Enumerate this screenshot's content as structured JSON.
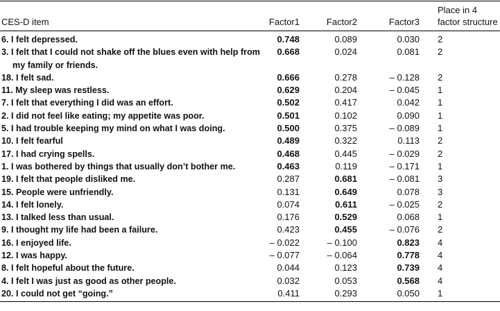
{
  "table": {
    "header": [
      "CES-D item",
      "Factor1",
      "Factor2",
      "Factor3",
      [
        "Place in 4",
        "factor structure"
      ]
    ],
    "rows": [
      {
        "item": "6. I felt depressed.",
        "values": [
          "0.748",
          "0.089",
          "0.030",
          "2"
        ],
        "bold": 0
      },
      {
        "item": "3. I felt that I could not shake off the blues  even with help from my family or friends.",
        "values": [
          "0.668",
          "0.024",
          "0.081",
          "2"
        ],
        "bold": 0
      },
      {
        "item": "18. I felt sad.",
        "values": [
          "0.666",
          "0.278",
          "– 0.128",
          "2"
        ],
        "bold": 0
      },
      {
        "item": "11. My sleep was restless.",
        "values": [
          "0.629",
          "0.204",
          "– 0.045",
          "1"
        ],
        "bold": 0
      },
      {
        "item": "7. I felt that everything I did was an effort.",
        "values": [
          "0.502",
          "0.417",
          "0.042",
          "1"
        ],
        "bold": 0
      },
      {
        "item": "2. I did not feel like eating; my appetite was  poor.",
        "values": [
          "0.501",
          "0.102",
          "0.090",
          "1"
        ],
        "bold": 0
      },
      {
        "item": "5. I had trouble keeping my mind on what I  was doing.",
        "values": [
          "0.500",
          "0.375",
          "– 0.089",
          "1"
        ],
        "bold": 0
      },
      {
        "item": "10. I felt fearful",
        "values": [
          "0.489",
          "0.322",
          "0.113",
          "2"
        ],
        "bold": 0
      },
      {
        "item": "17. I had crying spells.",
        "values": [
          "0.468",
          "0.445",
          "– 0.029",
          "2"
        ],
        "bold": 0
      },
      {
        "item": "1. I was bothered by things that usually don’t bother me.",
        "values": [
          "0.463",
          "0.119",
          "– 0.171",
          "1"
        ],
        "bold": 0
      },
      {
        "item": "19. I felt that people disliked me.",
        "values": [
          "0.287",
          "0.681",
          "– 0.081",
          "3"
        ],
        "bold": 1
      },
      {
        "item": "15. People were unfriendly.",
        "values": [
          "0.131",
          "0.649",
          "0.078",
          "3"
        ],
        "bold": 1
      },
      {
        "item": "14. I felt lonely.",
        "values": [
          "0.074",
          "0.611",
          "– 0.025",
          "2"
        ],
        "bold": 1
      },
      {
        "item": "13. I talked less than usual.",
        "values": [
          "0.176",
          "0.529",
          "0.068",
          "1"
        ],
        "bold": 1
      },
      {
        "item": "9. I thought my life had been a failure.",
        "values": [
          "0.423",
          "0.455",
          "– 0.076",
          "2"
        ],
        "bold": 1
      },
      {
        "item": "16. I enjoyed life.",
        "values": [
          "– 0.022",
          "– 0.100",
          "0.823",
          "4"
        ],
        "bold": 2
      },
      {
        "item": "12. I was happy.",
        "values": [
          "– 0.077",
          "– 0.064",
          "0.778",
          "4"
        ],
        "bold": 2
      },
      {
        "item": "8. I felt hopeful about the future.",
        "values": [
          "0.044",
          "0.123",
          "0.739",
          "4"
        ],
        "bold": 2
      },
      {
        "item": "4. I felt I was just as good as other people.",
        "values": [
          "0.032",
          "0.053",
          "0.568",
          "4"
        ],
        "bold": 2
      },
      {
        "item": "20. I could not get “going.”",
        "values": [
          "0.411",
          "0.293",
          "0.050",
          "1"
        ],
        "bold": null
      }
    ]
  }
}
